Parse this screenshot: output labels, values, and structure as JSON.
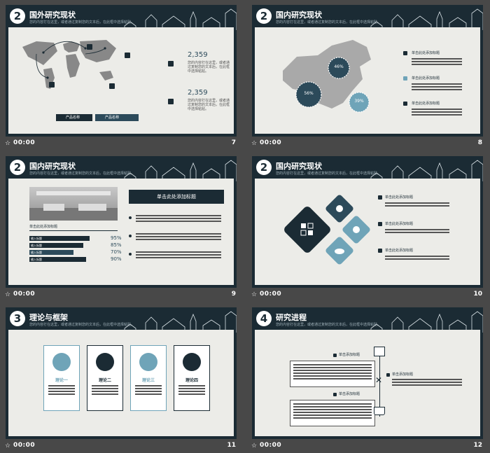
{
  "colors": {
    "dark": "#1b2b34",
    "accent": "#2c4a5a",
    "light": "#6fa4b8",
    "paper": "#ecece8",
    "bg": "#484848"
  },
  "slides": [
    {
      "num": "2",
      "title": "国外研究现状",
      "sub": "您的内容打在这里，或者通过复制您的文本后，在此框中选择粘贴。",
      "footer_time": "00:00",
      "page": "7",
      "stat1": "2,359",
      "stat2": "2,359",
      "text1": "您的内容打在这里，或者通过复制您的文本后，在此框中选择粘贴。",
      "legend1": "产品名称",
      "legend2": "产品名称"
    },
    {
      "num": "2",
      "title": "国内研究现状",
      "sub": "您的内容打在这里，或者通过复制您的文本后，在此框中选择粘贴。",
      "footer_time": "00:00",
      "page": "8",
      "p1": "46%",
      "p2": "56%",
      "p3": "39%",
      "item1": "单击此处添加标题",
      "item2": "单击此处添加标题",
      "item3": "单击此处添加标题"
    },
    {
      "num": "2",
      "title": "国内研究现状",
      "sub": "您的内容打在这里，或者通过复制您的文本后，在此框中选择粘贴。",
      "footer_time": "00:00",
      "page": "9",
      "box_title": "单击此处添加标题",
      "img_caption": "单击此处添加标题",
      "bars": [
        {
          "label": "输入标题",
          "pct": "95%",
          "val": 0.95
        },
        {
          "label": "输入标题",
          "pct": "85%",
          "val": 0.85
        },
        {
          "label": "输入标题",
          "pct": "70%",
          "val": 0.7
        },
        {
          "label": "输入标题",
          "pct": "90%",
          "val": 0.9
        }
      ]
    },
    {
      "num": "2",
      "title": "国内研究现状",
      "sub": "您的内容打在这里，或者通过复制您的文本后，在此框中选择粘贴。",
      "footer_time": "00:00",
      "page": "10",
      "item1": "单击此处添加标题",
      "item2": "单击此处添加标题",
      "item3": "单击此处添加标题"
    },
    {
      "num": "3",
      "title": "理论与框架",
      "sub": "您的内容打在这里，或者通过复制您的文本后，在此框中选择粘贴。",
      "footer_time": "00:00",
      "page": "11",
      "cards": [
        "理论一",
        "理论二",
        "理论三",
        "理论四"
      ]
    },
    {
      "num": "4",
      "title": "研究进程",
      "sub": "您的内容打在这里，或者通过复制您的文本后，在此框中选择粘贴。",
      "footer_time": "00:00",
      "page": "12",
      "item1": "单击添加标题",
      "item2": "单击添加标题",
      "item3": "单击添加标题"
    }
  ]
}
